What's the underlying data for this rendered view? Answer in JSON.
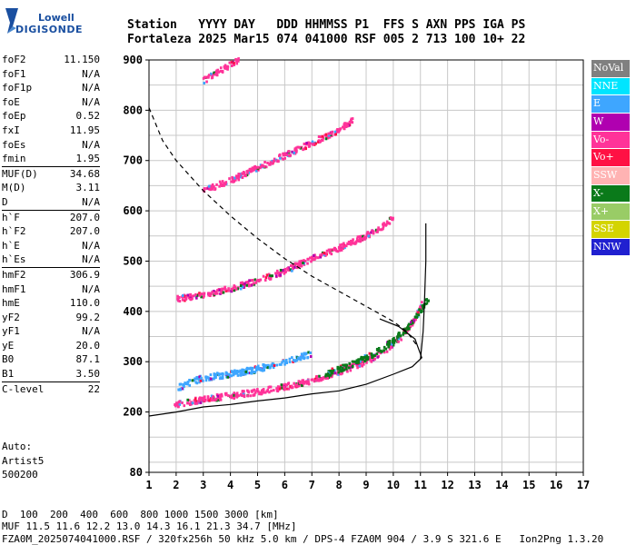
{
  "logo": {
    "line1": "Lowell",
    "line2": "DIGISONDE"
  },
  "header": {
    "line1": "Station   YYYY DAY   DDD HHMMSS P1  FFS S AXN PPS IGA PS",
    "line2": "Fortaleza 2025 Mar15 074 041000 RSF 005 2 713 100 10+ 22"
  },
  "params": [
    {
      "label": "foF2",
      "value": "11.150"
    },
    {
      "label": "foF1",
      "value": "N/A"
    },
    {
      "label": "foF1p",
      "value": "N/A"
    },
    {
      "label": "foE",
      "value": "N/A"
    },
    {
      "label": "foEp",
      "value": "0.52"
    },
    {
      "label": "fxI",
      "value": "11.95"
    },
    {
      "label": "foEs",
      "value": "N/A"
    },
    {
      "label": "fmin",
      "value": "1.95"
    },
    {
      "label": "MUF(D)",
      "value": "34.68",
      "sep": true
    },
    {
      "label": "M(D)",
      "value": "3.11"
    },
    {
      "label": "D",
      "value": "N/A"
    },
    {
      "label": "h`F",
      "value": "207.0",
      "sep": true
    },
    {
      "label": "h`F2",
      "value": "207.0"
    },
    {
      "label": "h`E",
      "value": "N/A"
    },
    {
      "label": "h`Es",
      "value": "N/A"
    },
    {
      "label": "hmF2",
      "value": "306.9",
      "sep": true
    },
    {
      "label": "hmF1",
      "value": "N/A"
    },
    {
      "label": "hmE",
      "value": "110.0"
    },
    {
      "label": "yF2",
      "value": "99.2"
    },
    {
      "label": "yF1",
      "value": "N/A"
    },
    {
      "label": "yE",
      "value": "20.0"
    },
    {
      "label": "B0",
      "value": "87.1"
    },
    {
      "label": "B1",
      "value": "3.50"
    },
    {
      "label": "C-level",
      "value": "22",
      "sep": true
    }
  ],
  "auto": {
    "line1": "Auto:",
    "line2": "Artist5",
    "line3": "500200"
  },
  "legend": [
    {
      "label": "NoVal",
      "color": "#808080"
    },
    {
      "label": "NNE",
      "color": "#00e5ff"
    },
    {
      "label": "E",
      "color": "#3ea6ff"
    },
    {
      "label": "W",
      "color": "#b000b0"
    },
    {
      "label": "Vo-",
      "color": "#ff3399"
    },
    {
      "label": "Vo+",
      "color": "#ff1144"
    },
    {
      "label": "SSW",
      "color": "#ffb3b3"
    },
    {
      "label": "X-",
      "color": "#0a7a1a"
    },
    {
      "label": "X+",
      "color": "#99cc66"
    },
    {
      "label": "SSE",
      "color": "#d4d400"
    },
    {
      "label": "NNW",
      "color": "#2020d0"
    }
  ],
  "footer": {
    "d_label": "D",
    "d_values": "  100  200  400  600  800 1000 1500 3000 [km]",
    "muf_label": "MUF",
    "muf_values": " 11.5 11.6 12.2 13.0 14.3 16.1 21.3 34.7 [MHz]",
    "info": "FZA0M_2025074041000.RSF / 320fx256h 50 kHz 5.0 km / DPS-4 FZA0M 904 / 3.9 S 321.6 E   Ion2Png 1.3.20"
  },
  "chart_data": {
    "type": "scatter",
    "xlim": [
      1,
      17
    ],
    "ylim": [
      80,
      900
    ],
    "x_ticks": [
      1,
      2,
      3,
      4,
      5,
      6,
      7,
      8,
      9,
      10,
      11,
      12,
      13,
      14,
      15,
      16,
      17
    ],
    "y_ticks": [
      80,
      200,
      300,
      400,
      500,
      600,
      700,
      800,
      900
    ],
    "grid": true,
    "traces": [
      {
        "name": "O-trace 1st hop",
        "color": "#ff3399",
        "points": [
          [
            1.95,
            215
          ],
          [
            2.5,
            220
          ],
          [
            3,
            225
          ],
          [
            4,
            232
          ],
          [
            5,
            240
          ],
          [
            6,
            250
          ],
          [
            7,
            262
          ],
          [
            8,
            280
          ],
          [
            9,
            300
          ],
          [
            9.5,
            315
          ],
          [
            10,
            335
          ],
          [
            10.3,
            350
          ],
          [
            10.6,
            370
          ],
          [
            10.9,
            395
          ],
          [
            11.1,
            420
          ]
        ]
      },
      {
        "name": "X-trace 1st hop",
        "color": "#0a7a1a",
        "points": [
          [
            7.5,
            275
          ],
          [
            8,
            285
          ],
          [
            8.5,
            295
          ],
          [
            9,
            308
          ],
          [
            9.5,
            322
          ],
          [
            10,
            342
          ],
          [
            10.5,
            365
          ],
          [
            10.9,
            395
          ],
          [
            11.3,
            425
          ]
        ]
      },
      {
        "name": "E-direction",
        "color": "#3ea6ff",
        "points": [
          [
            1.95,
            245
          ],
          [
            2.5,
            258
          ],
          [
            3,
            268
          ],
          [
            4,
            275
          ],
          [
            5,
            285
          ],
          [
            6,
            300
          ],
          [
            7,
            315
          ]
        ]
      },
      {
        "name": "2nd hop",
        "color": "#ff3399",
        "points": [
          [
            2,
            425
          ],
          [
            3,
            432
          ],
          [
            4,
            445
          ],
          [
            5,
            460
          ],
          [
            6,
            480
          ],
          [
            7,
            505
          ],
          [
            8,
            525
          ],
          [
            9,
            550
          ],
          [
            9.5,
            565
          ],
          [
            10,
            585
          ]
        ]
      },
      {
        "name": "3rd hop",
        "color": "#ff3399",
        "points": [
          [
            3,
            640
          ],
          [
            4,
            660
          ],
          [
            5,
            685
          ],
          [
            6,
            710
          ],
          [
            7,
            735
          ],
          [
            8,
            760
          ],
          [
            8.5,
            780
          ]
        ]
      },
      {
        "name": "4th hop",
        "color": "#ff3399",
        "points": [
          [
            3,
            858
          ],
          [
            3.5,
            875
          ],
          [
            4,
            890
          ],
          [
            4.3,
            900
          ]
        ]
      }
    ],
    "profile_curve": [
      [
        1,
        192
      ],
      [
        2,
        200
      ],
      [
        3,
        210
      ],
      [
        4,
        215
      ],
      [
        5,
        222
      ],
      [
        6,
        228
      ],
      [
        7,
        236
      ],
      [
        8,
        242
      ],
      [
        9,
        255
      ],
      [
        10,
        275
      ],
      [
        10.7,
        290
      ],
      [
        11.05,
        308
      ],
      [
        10.8,
        345
      ],
      [
        10.2,
        370
      ],
      [
        9.5,
        385
      ]
    ],
    "vertical_profile": [
      [
        11.0,
        305
      ],
      [
        11.1,
        360
      ],
      [
        11.15,
        420
      ],
      [
        11.2,
        500
      ],
      [
        11.2,
        575
      ]
    ],
    "muf_curve": [
      [
        1,
        805
      ],
      [
        1.5,
        740
      ],
      [
        2,
        700
      ],
      [
        3,
        640
      ],
      [
        4,
        590
      ],
      [
        5,
        545
      ],
      [
        6,
        505
      ],
      [
        7,
        470
      ],
      [
        8,
        440
      ],
      [
        9,
        410
      ],
      [
        10,
        380
      ],
      [
        10.5,
        360
      ],
      [
        10.9,
        330
      ]
    ]
  }
}
